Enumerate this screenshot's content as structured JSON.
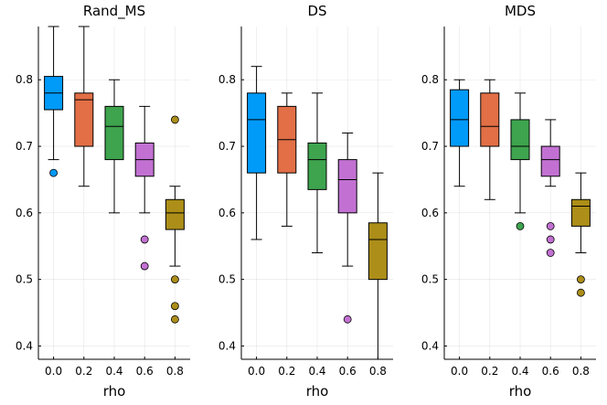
{
  "figure": {
    "shared_ylabel": "",
    "shared_xlabel": "rho"
  },
  "colors": [
    "#009af9",
    "#e26f46",
    "#3ea44e",
    "#c271d2",
    "#ac8e18"
  ],
  "chart_data": [
    {
      "type": "box",
      "title": "Rand_MS",
      "xlabel": "rho",
      "ylim": [
        0.38,
        0.88
      ],
      "yticks": [
        0.4,
        0.5,
        0.6,
        0.7,
        0.8
      ],
      "ytick_labels": [
        "0.4",
        "0.5",
        "0.6",
        "0.7",
        "0.8"
      ],
      "categories": [
        "0.0",
        "0.2",
        "0.4",
        "0.6",
        "0.8"
      ],
      "boxes": [
        {
          "category": "0.0",
          "whisker_low": 0.68,
          "q1": 0.755,
          "median": 0.78,
          "q3": 0.805,
          "whisker_high": 0.88,
          "outliers": [
            0.66
          ]
        },
        {
          "category": "0.2",
          "whisker_low": 0.64,
          "q1": 0.7,
          "median": 0.77,
          "q3": 0.78,
          "whisker_high": 0.88,
          "outliers": []
        },
        {
          "category": "0.4",
          "whisker_low": 0.6,
          "q1": 0.68,
          "median": 0.73,
          "q3": 0.76,
          "whisker_high": 0.8,
          "outliers": []
        },
        {
          "category": "0.6",
          "whisker_low": 0.6,
          "q1": 0.655,
          "median": 0.68,
          "q3": 0.705,
          "whisker_high": 0.76,
          "outliers": [
            0.56,
            0.52
          ]
        },
        {
          "category": "0.8",
          "whisker_low": 0.52,
          "q1": 0.575,
          "median": 0.6,
          "q3": 0.62,
          "whisker_high": 0.64,
          "outliers": [
            0.74,
            0.5,
            0.46,
            0.44
          ]
        }
      ]
    },
    {
      "type": "box",
      "title": "DS",
      "xlabel": "rho",
      "ylim": [
        0.38,
        0.88
      ],
      "yticks": [
        0.4,
        0.5,
        0.6,
        0.7,
        0.8
      ],
      "ytick_labels": [
        "0.4",
        "0.5",
        "0.6",
        "0.7",
        "0.8"
      ],
      "categories": [
        "0.0",
        "0.2",
        "0.4",
        "0.6",
        "0.8"
      ],
      "boxes": [
        {
          "category": "0.0",
          "whisker_low": 0.56,
          "q1": 0.66,
          "median": 0.74,
          "q3": 0.78,
          "whisker_high": 0.82,
          "outliers": []
        },
        {
          "category": "0.2",
          "whisker_low": 0.58,
          "q1": 0.66,
          "median": 0.71,
          "q3": 0.76,
          "whisker_high": 0.78,
          "outliers": []
        },
        {
          "category": "0.4",
          "whisker_low": 0.54,
          "q1": 0.635,
          "median": 0.68,
          "q3": 0.705,
          "whisker_high": 0.78,
          "outliers": []
        },
        {
          "category": "0.6",
          "whisker_low": 0.52,
          "q1": 0.6,
          "median": 0.65,
          "q3": 0.68,
          "whisker_high": 0.72,
          "outliers": [
            0.44
          ]
        },
        {
          "category": "0.8",
          "whisker_low": 0.38,
          "q1": 0.5,
          "median": 0.56,
          "q3": 0.585,
          "whisker_high": 0.66,
          "outliers": []
        }
      ]
    },
    {
      "type": "box",
      "title": "MDS",
      "xlabel": "rho",
      "ylim": [
        0.38,
        0.88
      ],
      "yticks": [
        0.4,
        0.5,
        0.6,
        0.7,
        0.8
      ],
      "ytick_labels": [
        "0.4",
        "0.5",
        "0.6",
        "0.7",
        "0.8"
      ],
      "categories": [
        "0.0",
        "0.2",
        "0.4",
        "0.6",
        "0.8"
      ],
      "boxes": [
        {
          "category": "0.0",
          "whisker_low": 0.64,
          "q1": 0.7,
          "median": 0.74,
          "q3": 0.785,
          "whisker_high": 0.8,
          "outliers": []
        },
        {
          "category": "0.2",
          "whisker_low": 0.62,
          "q1": 0.7,
          "median": 0.73,
          "q3": 0.78,
          "whisker_high": 0.8,
          "outliers": []
        },
        {
          "category": "0.4",
          "whisker_low": 0.6,
          "q1": 0.68,
          "median": 0.7,
          "q3": 0.74,
          "whisker_high": 0.78,
          "outliers": [
            0.58
          ]
        },
        {
          "category": "0.6",
          "whisker_low": 0.64,
          "q1": 0.655,
          "median": 0.68,
          "q3": 0.7,
          "whisker_high": 0.74,
          "outliers": [
            0.58,
            0.56,
            0.54
          ]
        },
        {
          "category": "0.8",
          "whisker_low": 0.54,
          "q1": 0.58,
          "median": 0.61,
          "q3": 0.62,
          "whisker_high": 0.66,
          "outliers": [
            0.5,
            0.48
          ]
        }
      ]
    }
  ]
}
